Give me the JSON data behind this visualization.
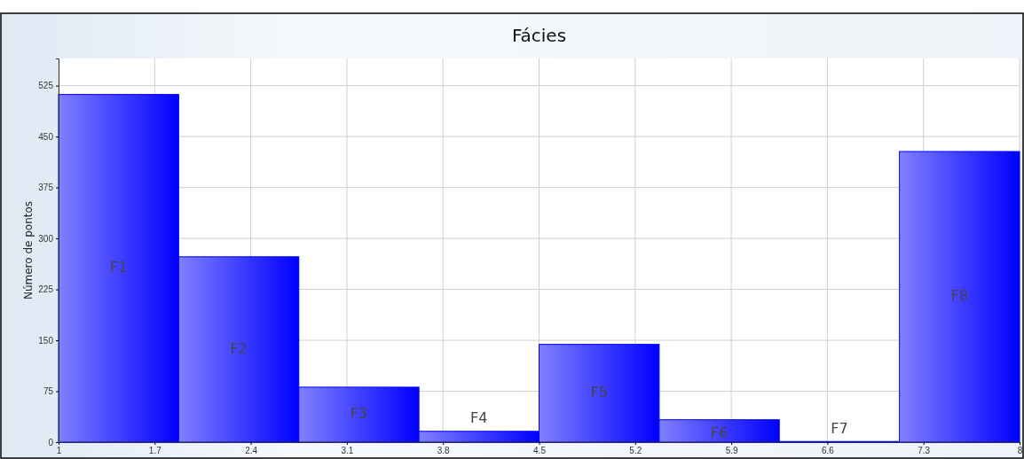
{
  "chart_data": {
    "type": "histogram",
    "title": "Fácies",
    "ylabel": "Número de pontos",
    "bins": [
      1,
      1.875,
      2.75,
      3.625,
      4.5,
      5.375,
      6.25,
      7.125,
      8
    ],
    "values": [
      512,
      273,
      81,
      16,
      144,
      33,
      1,
      428
    ],
    "color": "#0000ff",
    "xlim": [
      1,
      8
    ],
    "xticks": [
      1,
      1.7,
      2.4,
      3.1,
      3.8,
      4.5,
      5.2,
      5.9,
      6.6,
      7.3,
      8
    ],
    "ylim": [
      0,
      565
    ],
    "yticks": [
      0,
      75,
      150,
      225,
      300,
      375,
      450,
      525
    ],
    "grid": true,
    "annotations": [
      "F1",
      "F2",
      "F3",
      "F4",
      "F5",
      "F6",
      "F7",
      "F8"
    ]
  }
}
